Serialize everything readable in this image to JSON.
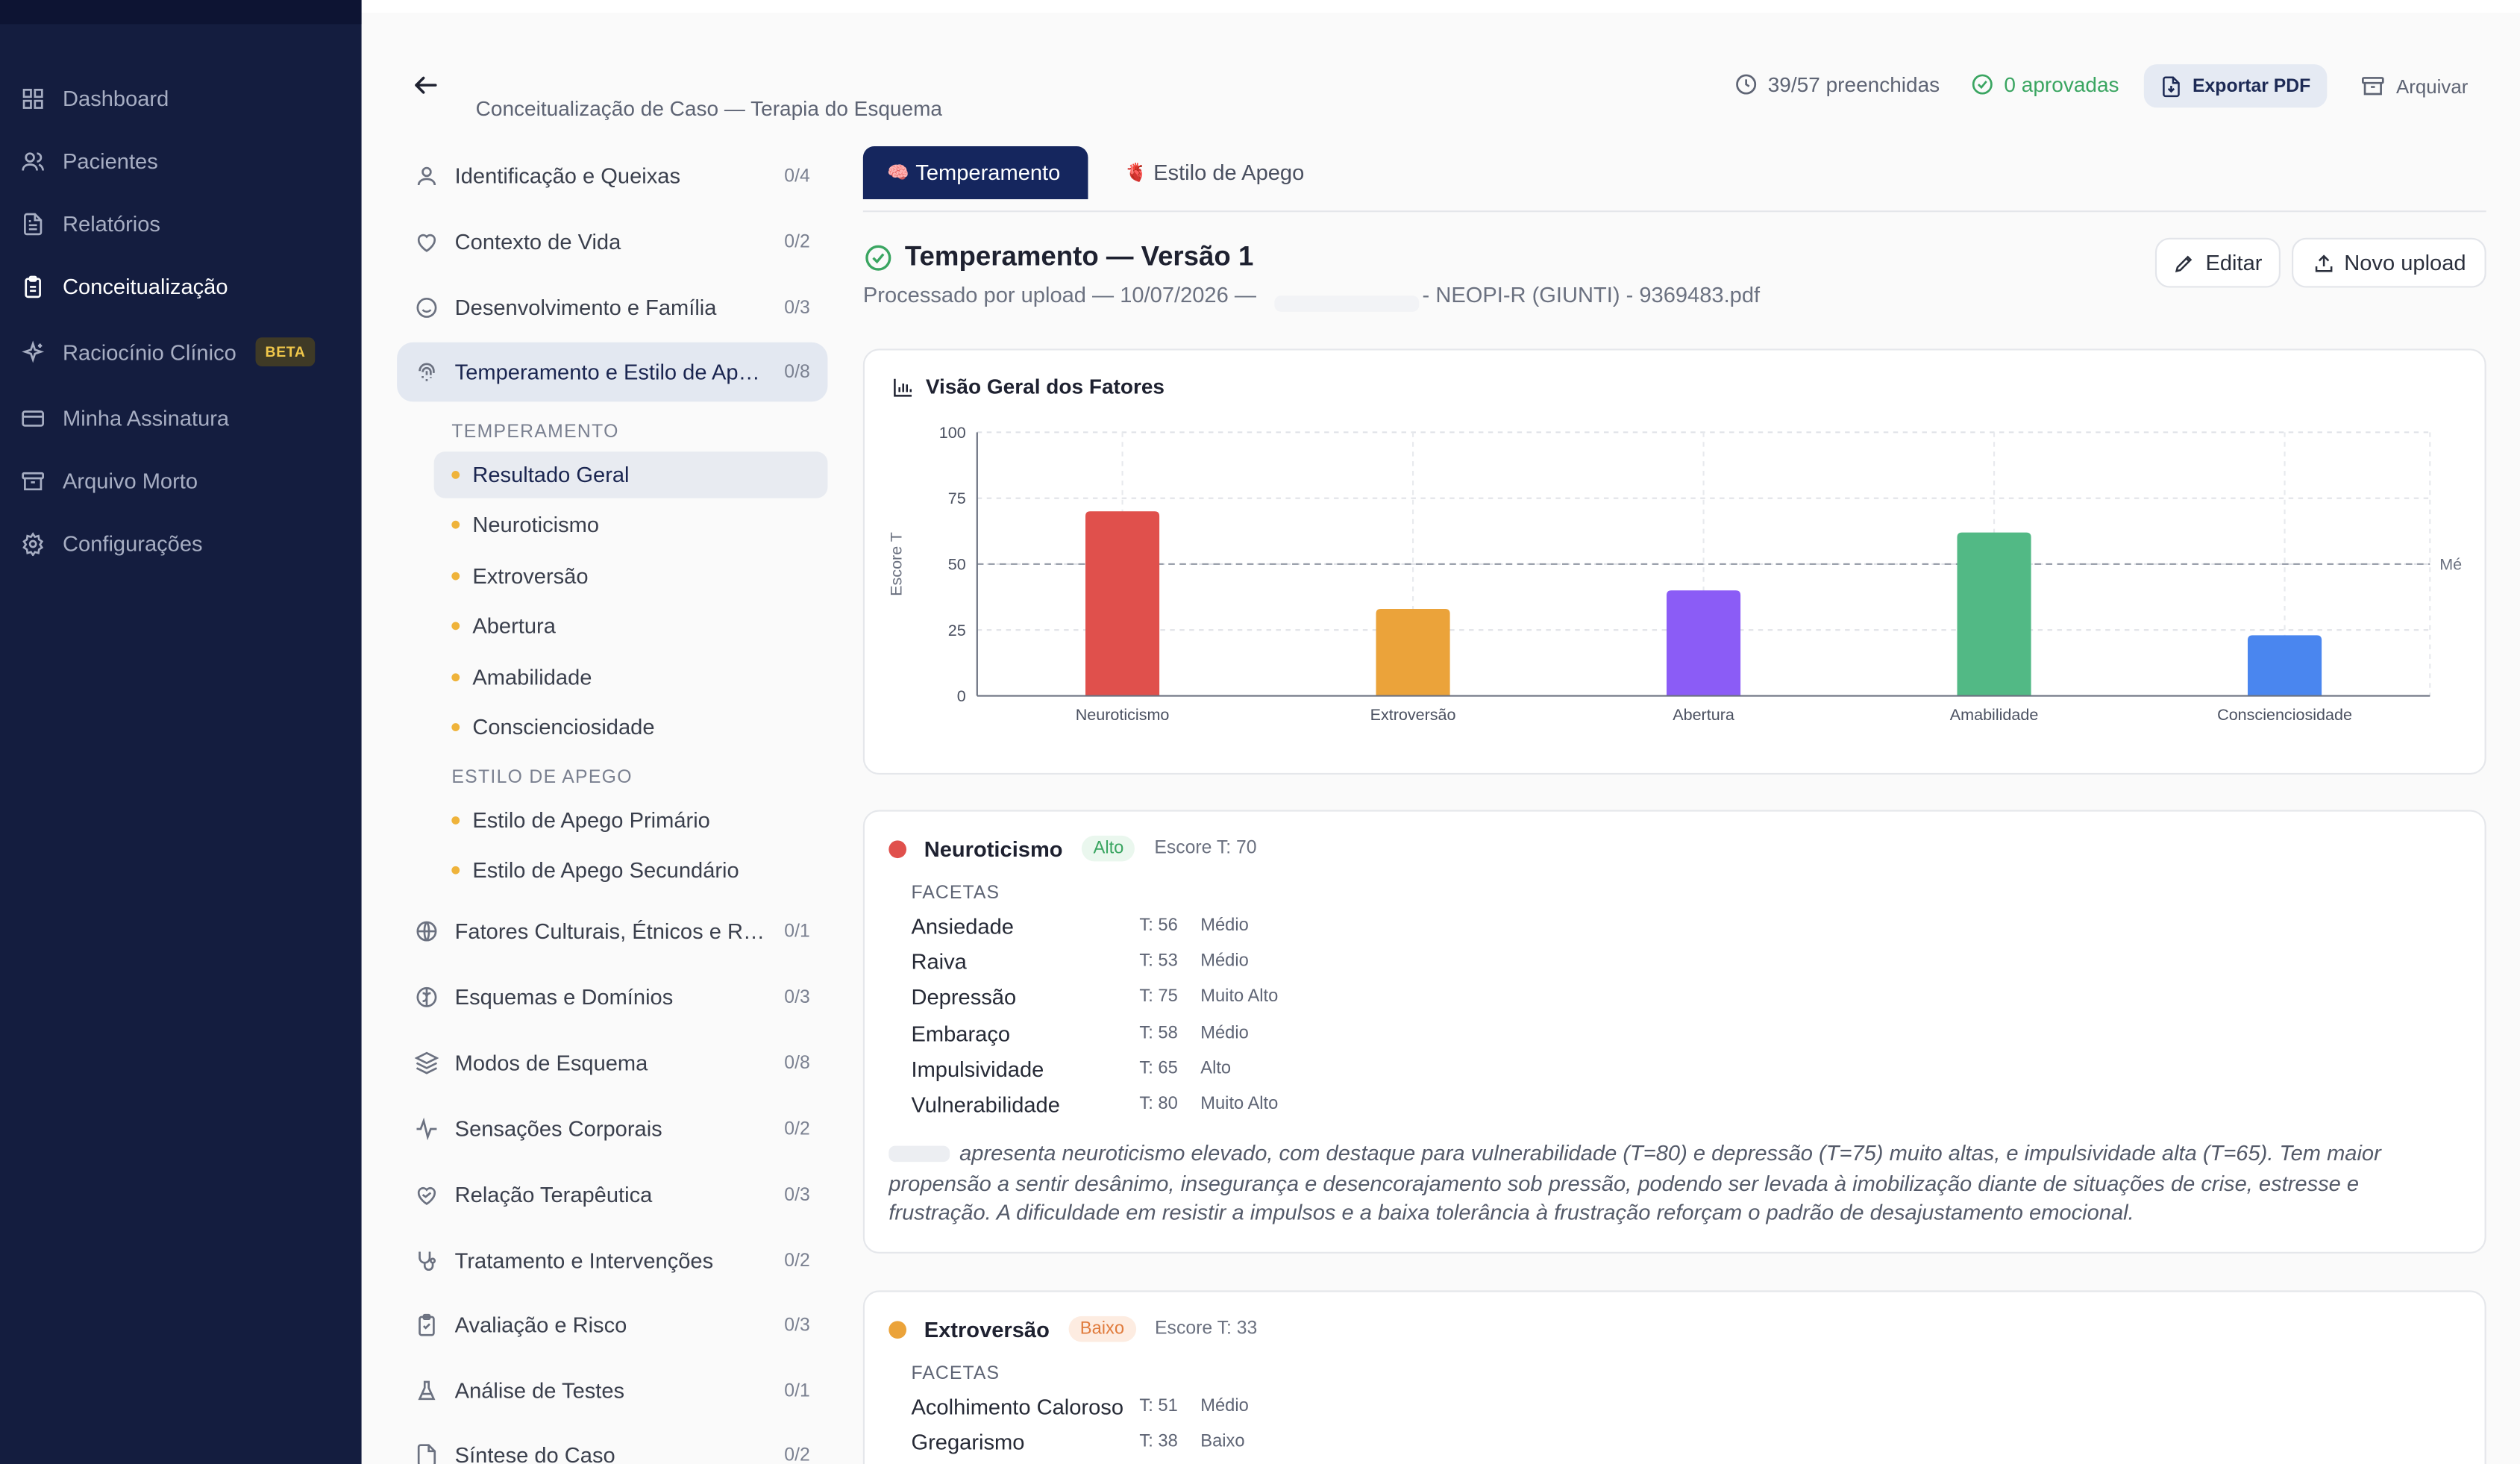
{
  "sidebar": {
    "items": [
      {
        "label": "Dashboard",
        "icon": "grid-icon"
      },
      {
        "label": "Pacientes",
        "icon": "users-icon"
      },
      {
        "label": "Relatórios",
        "icon": "file-text-icon"
      },
      {
        "label": "Conceitualização",
        "icon": "clipboard-icon",
        "active": true
      },
      {
        "label": "Raciocínio Clínico",
        "icon": "sparkles-icon",
        "badge": "BETA"
      },
      {
        "label": "Minha Assinatura",
        "icon": "credit-card-icon"
      },
      {
        "label": "Arquivo Morto",
        "icon": "archive-icon"
      },
      {
        "label": "Configurações",
        "icon": "gear-icon"
      }
    ]
  },
  "header": {
    "subtitle": "Conceitualização de Caso — Terapia do Esquema",
    "filled": "39/57 preenchidas",
    "approved": "0 aprovadas",
    "export_label": "Exportar PDF",
    "archive_label": "Arquivar"
  },
  "sections": [
    {
      "label": "Identificação e Queixas",
      "count": "0/4",
      "icon": "user-icon"
    },
    {
      "label": "Contexto de Vida",
      "count": "0/2",
      "icon": "heart-icon"
    },
    {
      "label": "Desenvolvimento e Família",
      "count": "0/3",
      "icon": "smile-icon"
    },
    {
      "label": "Temperamento e Estilo de Apego",
      "count": "0/8",
      "icon": "fingerprint-icon",
      "active": true
    },
    {
      "label": "Fatores Culturais, Étnicos e Religiosos",
      "count": "0/1",
      "icon": "globe-icon"
    },
    {
      "label": "Esquemas e Domínios",
      "count": "0/3",
      "icon": "brain-icon"
    },
    {
      "label": "Modos de Esquema",
      "count": "0/8",
      "icon": "layers-icon"
    },
    {
      "label": "Sensações Corporais",
      "count": "0/2",
      "icon": "activity-icon"
    },
    {
      "label": "Relação Terapêutica",
      "count": "0/3",
      "icon": "heart-handshake-icon"
    },
    {
      "label": "Tratamento e Intervenções",
      "count": "0/2",
      "icon": "stethoscope-icon"
    },
    {
      "label": "Avaliação e Risco",
      "count": "0/3",
      "icon": "clipboard-check-icon"
    },
    {
      "label": "Análise de Testes",
      "count": "0/1",
      "icon": "flask-icon"
    },
    {
      "label": "Síntese do Caso",
      "count": "0/2",
      "icon": "file-icon"
    }
  ],
  "subgroups": {
    "temperamento_title": "TEMPERAMENTO",
    "temperamento_items": [
      "Resultado Geral",
      "Neuroticismo",
      "Extroversão",
      "Abertura",
      "Amabilidade",
      "Conscienciosidade"
    ],
    "apego_title": "ESTILO DE APEGO",
    "apego_items": [
      "Estilo de Apego Primário",
      "Estilo de Apego Secundário"
    ]
  },
  "tabs": [
    {
      "label": "Temperamento",
      "emoji": "🧠",
      "active": true
    },
    {
      "label": "Estilo de Apego",
      "emoji": "🫀",
      "active": false
    }
  ],
  "version": {
    "title": "Temperamento — Versão 1",
    "processed": "Processado por upload — 10/07/2026 —",
    "file": "- NEOPI-R (GIUNTI) - 9369483.pdf",
    "edit_label": "Editar",
    "upload_label": "Novo upload"
  },
  "chart_card": {
    "title": "Visão Geral dos Fatores"
  },
  "chart_data": {
    "type": "bar",
    "title": "Visão Geral dos Fatores",
    "xlabel": "",
    "ylabel": "Escore T",
    "ylim": [
      0,
      100
    ],
    "yticks": [
      "0",
      "25",
      "50",
      "75",
      "100"
    ],
    "categories": [
      "Neuroticismo",
      "Extroversão",
      "Abertura",
      "Amabilidade",
      "Conscienciosidade"
    ],
    "values": [
      70,
      33,
      40,
      62,
      23
    ],
    "colors": [
      "#e0504c",
      "#eba33a",
      "#8b5cf6",
      "#52b985",
      "#4a86ef"
    ],
    "reference_line": {
      "value": 50,
      "label": "Mé"
    },
    "grid": true
  },
  "factors": [
    {
      "name": "Neuroticismo",
      "color": "#e0504c",
      "level": "Alto",
      "score": "Escore T: 70",
      "facets_title": "FACETAS",
      "facets": [
        {
          "name": "Ansiedade",
          "t": "T: 56",
          "class": "Médio"
        },
        {
          "name": "Raiva",
          "t": "T: 53",
          "class": "Médio"
        },
        {
          "name": "Depressão",
          "t": "T: 75",
          "class": "Muito Alto"
        },
        {
          "name": "Embaraço",
          "t": "T: 58",
          "class": "Médio"
        },
        {
          "name": "Impulsividade",
          "t": "T: 65",
          "class": "Alto"
        },
        {
          "name": "Vulnerabilidade",
          "t": "T: 80",
          "class": "Muito Alto"
        }
      ],
      "description": "apresenta neuroticismo elevado, com destaque para vulnerabilidade (T=80) e depressão (T=75) muito altas, e impulsividade alta (T=65). Tem maior propensão a sentir desânimo, insegurança e desencorajamento sob pressão, podendo ser levada à imobilização diante de situações de crise, estresse e frustração. A dificuldade em resistir a impulsos e a baixa tolerância à frustração reforçam o padrão de desajustamento emocional."
    },
    {
      "name": "Extroversão",
      "color": "#eba33a",
      "level": "Baixo",
      "score": "Escore T: 33",
      "facets_title": "FACETAS",
      "facets": [
        {
          "name": "Acolhimento Caloroso",
          "t": "T: 51",
          "class": "Médio"
        },
        {
          "name": "Gregarismo",
          "t": "T: 38",
          "class": "Baixo"
        }
      ]
    }
  ]
}
